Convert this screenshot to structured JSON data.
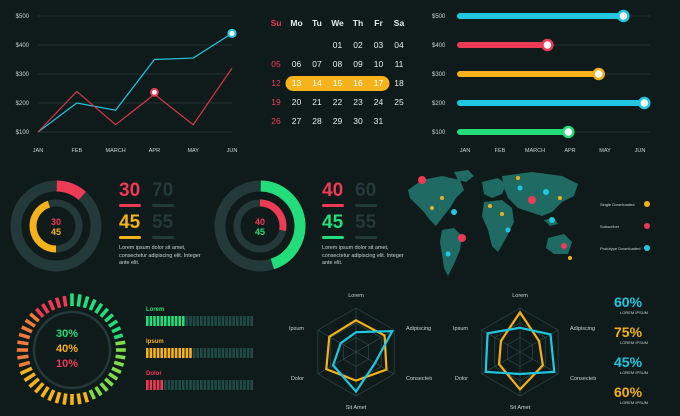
{
  "colors": {
    "bg": "#0f1a1a",
    "red": "#ee3b55",
    "yellow": "#f5b21a",
    "teal": "#1fc8e0",
    "green": "#22dd7a",
    "dark": "#24393a",
    "grid": "#2b3d3d"
  },
  "chart_data": [
    {
      "type": "line",
      "categories": [
        "JAN",
        "FEB",
        "MARCH",
        "APR",
        "MAY",
        "JUN"
      ],
      "y_ticks": [
        "$100",
        "$200",
        "$300",
        "$400",
        "$500"
      ],
      "ylim": [
        100,
        500
      ],
      "series": [
        {
          "color": "#1fc8e0",
          "values": [
            100,
            200,
            175,
            350,
            355,
            440
          ]
        },
        {
          "color": "#d23a48",
          "values": [
            100,
            240,
            125,
            230,
            125,
            320
          ]
        }
      ]
    },
    {
      "type": "table",
      "weekdays": [
        "Su",
        "Mo",
        "Tu",
        "We",
        "Th",
        "Fr",
        "Sa"
      ],
      "weeks": [
        [
          "",
          "",
          "",
          "01",
          "02",
          "03",
          "04"
        ],
        [
          "05",
          "06",
          "07",
          "08",
          "09",
          "10",
          "11"
        ],
        [
          "12",
          "13",
          "14",
          "15",
          "16",
          "17",
          "18"
        ],
        [
          "19",
          "20",
          "21",
          "22",
          "23",
          "24",
          "25"
        ],
        [
          "26",
          "27",
          "28",
          "29",
          "30",
          "31",
          ""
        ]
      ],
      "highlight": [
        "13",
        "14",
        "15",
        "16",
        "17"
      ]
    },
    {
      "type": "bar",
      "orientation": "horizontal",
      "categories": [
        "$500",
        "$400",
        "$300",
        "$200",
        "$100"
      ],
      "x_ticks": [
        "JAN",
        "FEB",
        "MARCH",
        "APR",
        "MAY",
        "JUN"
      ],
      "values": [
        0.86,
        0.46,
        0.73,
        0.97,
        0.57
      ],
      "colors": [
        "#1fc8e0",
        "#ee3b55",
        "#f5b21a",
        "#1fc8e0",
        "#22dd7a"
      ]
    },
    {
      "type": "pie",
      "inner_values": [
        "30",
        "45"
      ],
      "ring_red_pct": 30,
      "ring_yellow_pct": 45
    },
    {
      "type": "pie",
      "inner_values": [
        "40",
        "45"
      ],
      "ring_green_pct": 45,
      "ring_red_pct": 40
    },
    {
      "type": "bar",
      "orientation": "horizontal",
      "series": [
        {
          "name": "Lorem",
          "color": "#22dd7a",
          "value": 0.35
        },
        {
          "name": "Ipsum",
          "color": "#f5b21a",
          "value": 0.42
        },
        {
          "name": "Dolor",
          "color": "#ee3b55",
          "value": 0.15
        }
      ]
    },
    {
      "type": "radar",
      "axes": [
        "Lorem",
        "Adipiscing",
        "Consectetur",
        "Sit Amet",
        "Dolor",
        "Ipsum"
      ],
      "series": [
        {
          "color": "#f5b21a",
          "values": [
            0.72,
            0.75,
            0.8,
            0.65,
            0.78,
            0.7
          ]
        },
        {
          "color": "#1fc8e0",
          "values": [
            0.45,
            0.95,
            0.5,
            0.9,
            0.6,
            0.4
          ]
        }
      ]
    },
    {
      "type": "radar",
      "axes": [
        "Lorem",
        "Adipiscing",
        "Consectetur",
        "Sit Amet",
        "Dolor",
        "Ipsum"
      ],
      "series": [
        {
          "color": "#f5b21a",
          "values": [
            0.9,
            0.5,
            0.6,
            0.85,
            0.55,
            0.5
          ]
        },
        {
          "color": "#1fc8e0",
          "values": [
            0.55,
            0.8,
            0.9,
            0.5,
            0.9,
            0.85
          ]
        }
      ]
    }
  ],
  "donut1": {
    "center_top": "30",
    "center_bottom": "45",
    "stat1": "30",
    "stat2": "70",
    "stat3": "45",
    "stat4": "55",
    "text": "Lorem ipsum dolor sit amet, consectetur adipiscing elit. Integer ante elit."
  },
  "donut2": {
    "center_top": "40",
    "center_bottom": "45",
    "stat1": "40",
    "stat2": "60",
    "stat3": "45",
    "stat4": "55",
    "text": "Lorem ipsum dolor sit amet, consectetur adipiscing elit. Integer ante elit."
  },
  "map": {
    "legend": [
      {
        "label": "Single Downloaded",
        "color": "#f5b21a"
      },
      {
        "label": "Subscriber",
        "color": "#ee3b55"
      },
      {
        "label": "Prototype Downloaded",
        "color": "#1fc8e0"
      }
    ]
  },
  "segment_gauge": {
    "lines": [
      "30%",
      "40%",
      "10%"
    ]
  },
  "percent_list": [
    {
      "value": "60%",
      "label": "LOREM IPSUM",
      "color": "#1fc8e0"
    },
    {
      "value": "75%",
      "label": "LOREM IPSUM",
      "color": "#f5b21a"
    },
    {
      "value": "45%",
      "label": "LOREM IPSUM",
      "color": "#1fc8e0"
    },
    {
      "value": "60%",
      "label": "LOREM IPSUM",
      "color": "#f5b21a"
    }
  ]
}
